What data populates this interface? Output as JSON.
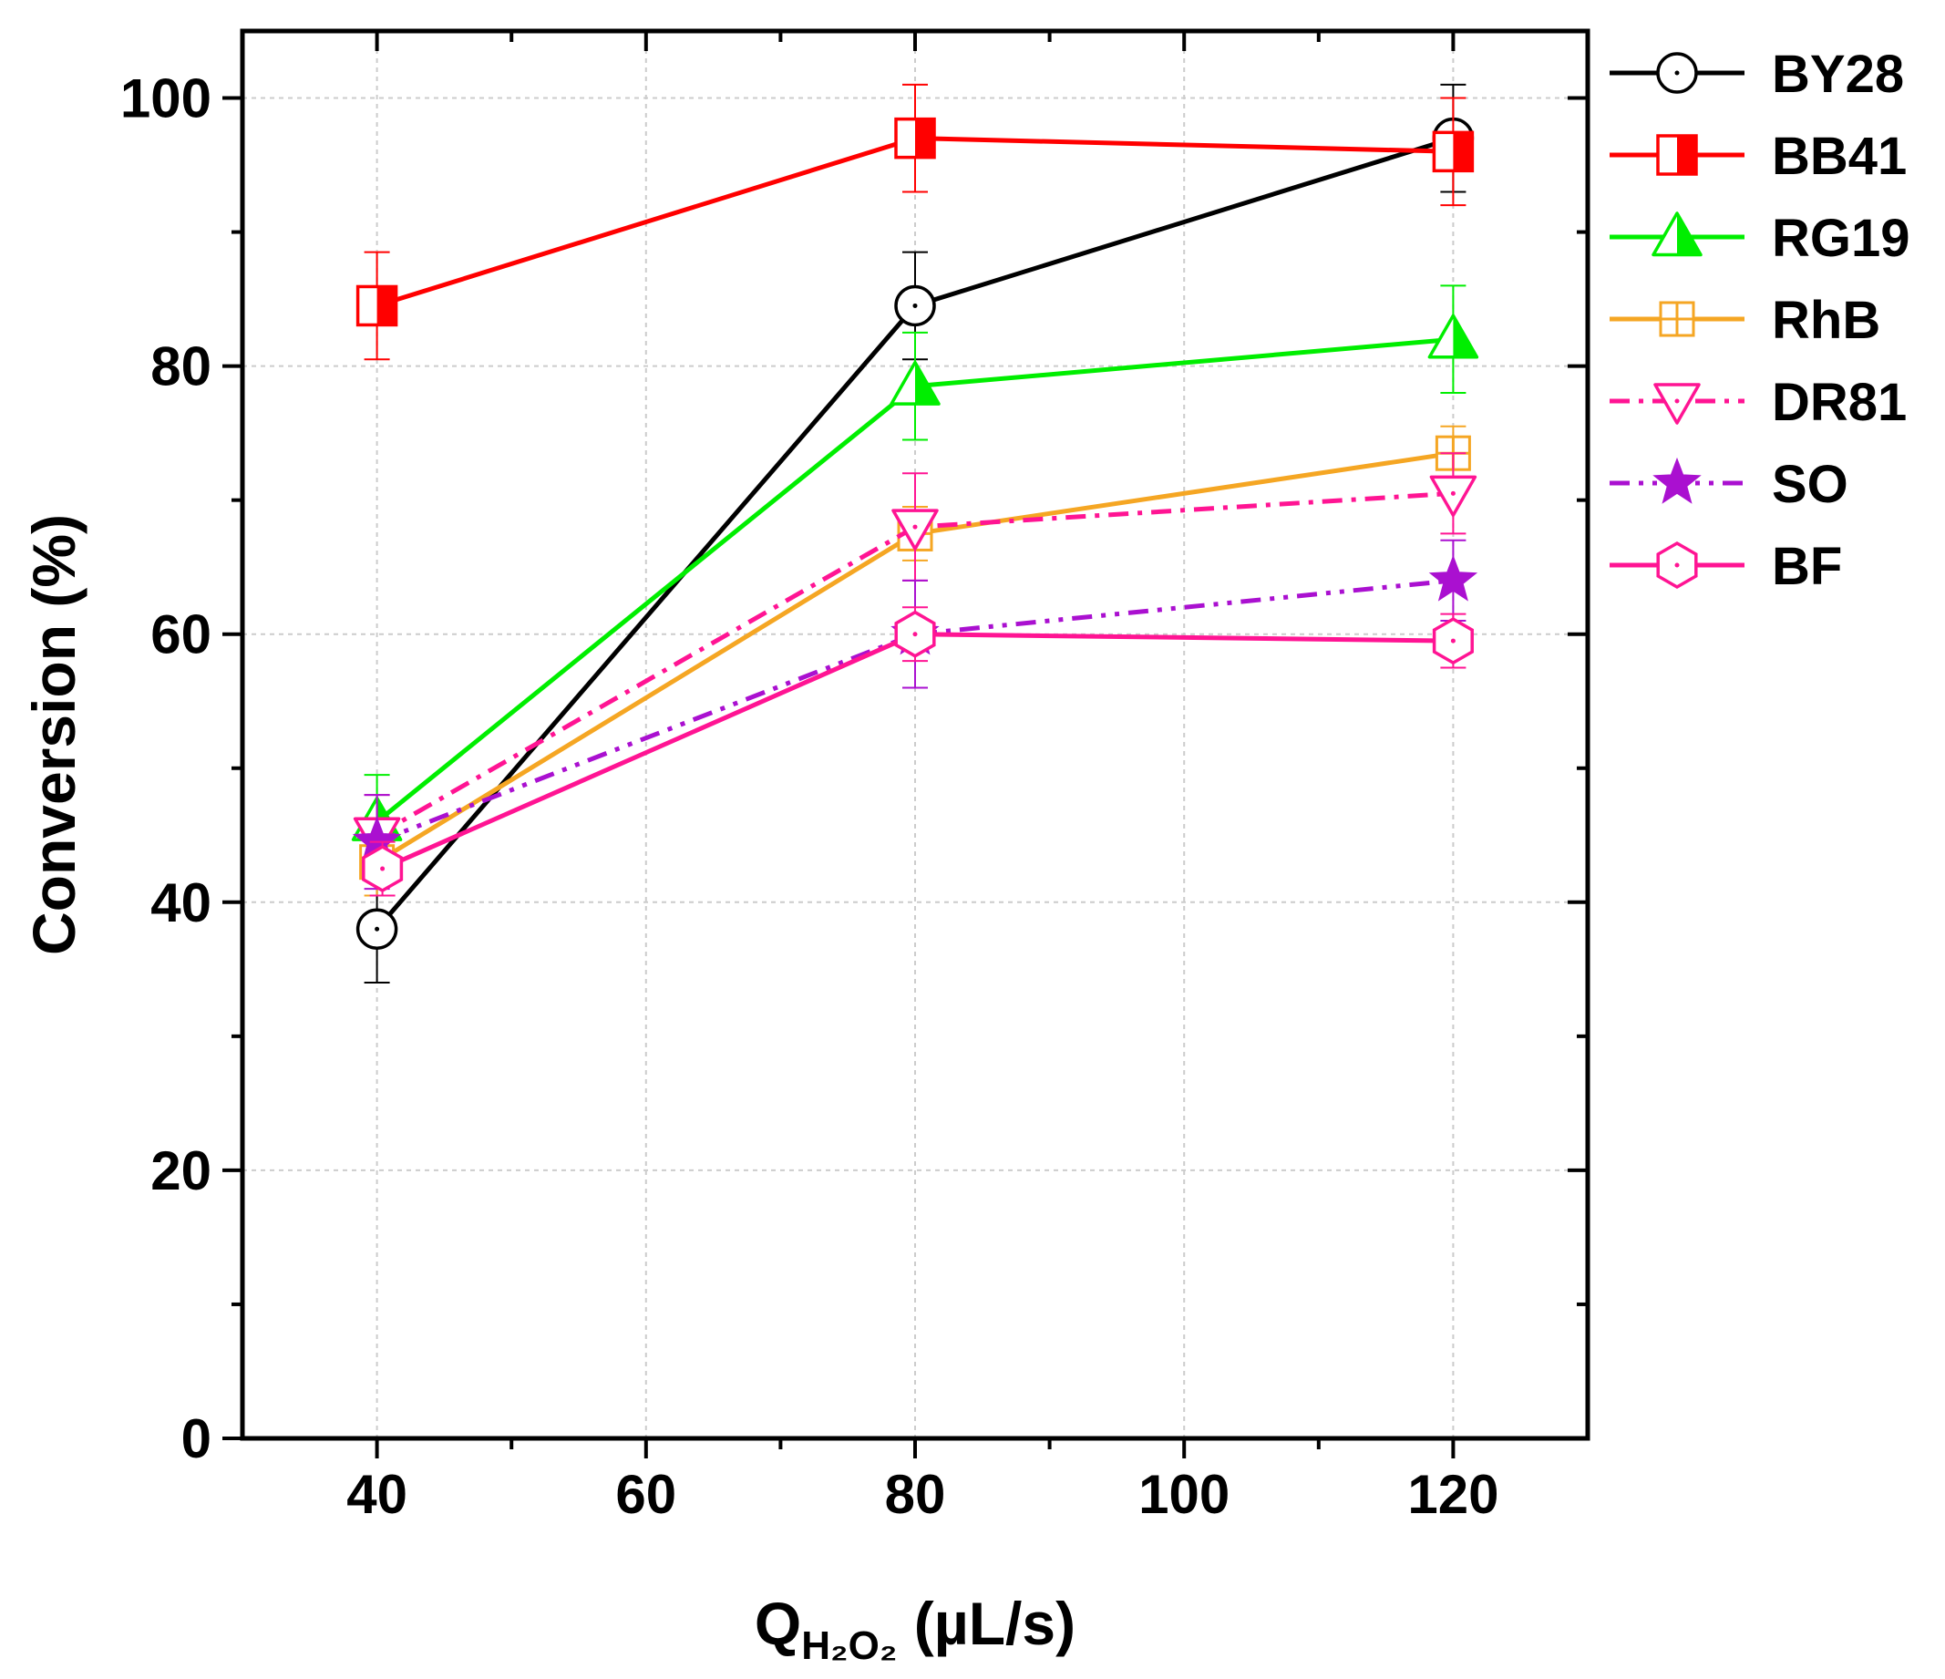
{
  "chart_data": {
    "type": "line",
    "title": "",
    "xlabel": {
      "main": "Q",
      "subscript": "H₂O₂",
      "unit": " (µL/s)"
    },
    "ylabel": "Conversion (%)",
    "xlim": [
      30,
      130
    ],
    "ylim": [
      0,
      105
    ],
    "x_ticks": [
      40,
      60,
      80,
      100,
      120
    ],
    "x_minor_ticks": [
      50,
      70,
      90,
      110
    ],
    "y_ticks": [
      0,
      20,
      40,
      60,
      80,
      100
    ],
    "y_minor_ticks": [
      10,
      30,
      50,
      70,
      90
    ],
    "grid": true,
    "legend_position": "outside-right-top",
    "x": [
      40,
      80,
      120
    ],
    "series": [
      {
        "name": "BY28",
        "color": "#000000",
        "marker": "circle",
        "dash": "solid",
        "values": [
          38,
          84.5,
          97
        ],
        "errors": [
          4,
          4,
          4
        ]
      },
      {
        "name": "BB41",
        "color": "#ff0000",
        "marker": "square",
        "dash": "solid",
        "values": [
          84.5,
          97,
          96
        ],
        "errors": [
          4,
          4,
          4
        ]
      },
      {
        "name": "RG19",
        "color": "#00ee00",
        "marker": "triangle-up",
        "dash": "solid",
        "values": [
          46,
          78.5,
          82
        ],
        "errors": [
          3.5,
          4,
          4
        ]
      },
      {
        "name": "RhB",
        "color": "#f5a623",
        "marker": "square-cross",
        "dash": "solid",
        "values": [
          43,
          67.5,
          73.5
        ],
        "errors": [
          2.5,
          2,
          2
        ]
      },
      {
        "name": "DR81",
        "color": "#ff1493",
        "marker": "triangle-down",
        "dash": "dash-dot",
        "values": [
          45,
          68,
          70.5
        ],
        "errors": [
          3,
          4,
          3
        ]
      },
      {
        "name": "SO",
        "color": "#aa10d0",
        "marker": "star",
        "dash": "dash-dot-dot",
        "values": [
          44.5,
          60,
          64
        ],
        "errors": [
          3.5,
          4,
          3
        ]
      },
      {
        "name": "BF",
        "color": "#ff1493",
        "marker": "hexagon",
        "dash": "solid",
        "values": [
          42.5,
          60,
          59.5
        ],
        "errors": [
          2,
          2,
          2
        ]
      }
    ]
  }
}
